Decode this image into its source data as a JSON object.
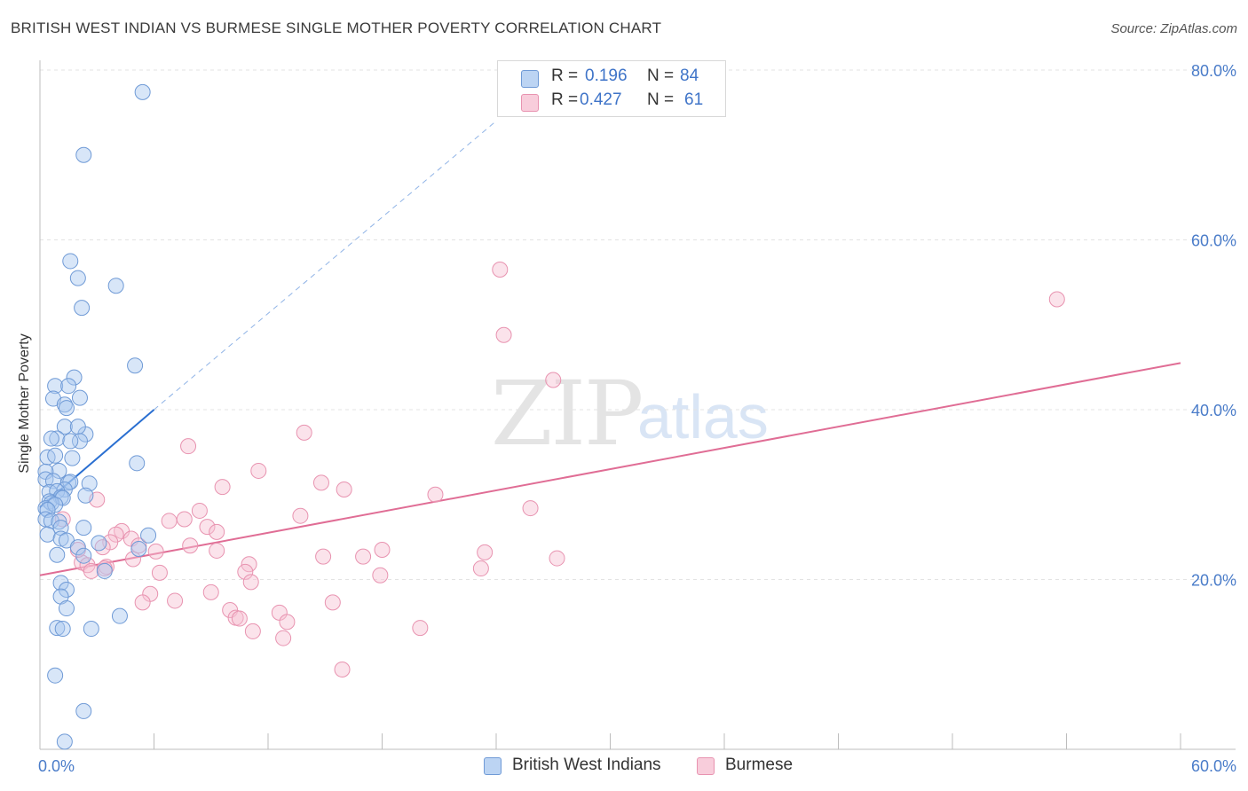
{
  "header": {
    "title": "BRITISH WEST INDIAN VS BURMESE SINGLE MOTHER POVERTY CORRELATION CHART",
    "source": "Source: ZipAtlas.com"
  },
  "watermark": {
    "zip": "ZIP",
    "atlas": "atlas"
  },
  "legend": {
    "rows": [
      {
        "r_label": "R =",
        "r_value": "0.196",
        "n_label": "N =",
        "n_value": "84"
      },
      {
        "r_label": "R =",
        "r_value": "0.427",
        "n_label": "N =",
        "n_value": "61"
      }
    ]
  },
  "bottom_legend": {
    "items": [
      {
        "label": "British West Indians"
      },
      {
        "label": "Burmese"
      }
    ]
  },
  "colors": {
    "blue_fill": "#a9c8ef",
    "blue_stroke": "#6f9ad6",
    "blue_line": "#2a6fd1",
    "pink_fill": "#f6c2d3",
    "pink_stroke": "#e893b0",
    "pink_line": "#e06d95",
    "tick_text": "#4a7cc9",
    "grid": "#e3e3e3"
  },
  "chart_data": {
    "type": "scatter",
    "title": "BRITISH WEST INDIAN VS BURMESE SINGLE MOTHER POVERTY CORRELATION CHART",
    "xlabel": "",
    "ylabel": "Single Mother Poverty",
    "xlim": [
      0,
      60
    ],
    "ylim": [
      0,
      80
    ],
    "x_tick_labels": [
      "0.0%",
      "60.0%"
    ],
    "y_tick_labels": [
      "20.0%",
      "40.0%",
      "60.0%",
      "80.0%"
    ],
    "y_ticks": [
      20,
      40,
      60,
      80
    ],
    "grid": true,
    "series": [
      {
        "name": "British West Indians",
        "color": "#a9c8ef",
        "R": 0.196,
        "N": 84,
        "trend": {
          "x": [
            0,
            6
          ],
          "y": [
            28.5,
            40.0
          ],
          "extended_to": [
            24,
            74
          ]
        },
        "points": [
          [
            5.4,
            77.4
          ],
          [
            2.3,
            70.0
          ],
          [
            1.6,
            57.5
          ],
          [
            2.0,
            55.5
          ],
          [
            4.0,
            54.6
          ],
          [
            2.2,
            52.0
          ],
          [
            5.0,
            45.2
          ],
          [
            1.8,
            43.8
          ],
          [
            0.8,
            42.8
          ],
          [
            1.5,
            42.8
          ],
          [
            0.7,
            41.3
          ],
          [
            2.1,
            41.4
          ],
          [
            1.3,
            40.6
          ],
          [
            1.4,
            40.2
          ],
          [
            2.4,
            37.1
          ],
          [
            1.3,
            38.0
          ],
          [
            2.0,
            38.0
          ],
          [
            0.9,
            36.6
          ],
          [
            2.1,
            36.3
          ],
          [
            0.6,
            36.6
          ],
          [
            1.6,
            36.3
          ],
          [
            0.4,
            34.4
          ],
          [
            0.8,
            34.6
          ],
          [
            1.7,
            34.3
          ],
          [
            1.0,
            32.8
          ],
          [
            0.3,
            32.7
          ],
          [
            5.1,
            33.7
          ],
          [
            0.3,
            31.8
          ],
          [
            0.7,
            31.6
          ],
          [
            1.5,
            31.4
          ],
          [
            2.6,
            31.3
          ],
          [
            1.6,
            31.5
          ],
          [
            1.3,
            30.6
          ],
          [
            0.5,
            30.3
          ],
          [
            0.9,
            30.4
          ],
          [
            1.1,
            29.7
          ],
          [
            2.4,
            29.9
          ],
          [
            0.5,
            29.2
          ],
          [
            1.2,
            29.6
          ],
          [
            0.6,
            29.0
          ],
          [
            0.3,
            28.4
          ],
          [
            0.8,
            28.8
          ],
          [
            0.4,
            28.2
          ],
          [
            0.3,
            27.1
          ],
          [
            0.6,
            26.9
          ],
          [
            1.0,
            26.8
          ],
          [
            1.1,
            26.1
          ],
          [
            2.3,
            26.1
          ],
          [
            0.4,
            25.3
          ],
          [
            1.1,
            24.8
          ],
          [
            1.4,
            24.6
          ],
          [
            3.1,
            24.3
          ],
          [
            5.7,
            25.2
          ],
          [
            2.0,
            23.8
          ],
          [
            5.2,
            23.6
          ],
          [
            0.9,
            22.9
          ],
          [
            2.3,
            22.8
          ],
          [
            3.4,
            21.0
          ],
          [
            1.1,
            19.6
          ],
          [
            1.4,
            18.8
          ],
          [
            1.1,
            18.0
          ],
          [
            1.4,
            16.6
          ],
          [
            4.2,
            15.7
          ],
          [
            0.9,
            14.3
          ],
          [
            1.2,
            14.2
          ],
          [
            2.7,
            14.2
          ],
          [
            0.8,
            8.7
          ],
          [
            2.3,
            4.5
          ],
          [
            1.3,
            0.9
          ]
        ]
      },
      {
        "name": "Burmese",
        "color": "#f6c2d3",
        "R": 0.427,
        "N": 61,
        "trend": {
          "x": [
            0,
            60
          ],
          "y": [
            20.5,
            45.5
          ]
        },
        "points": [
          [
            24.2,
            56.5
          ],
          [
            53.5,
            53.0
          ],
          [
            24.4,
            48.8
          ],
          [
            27.0,
            43.5
          ],
          [
            13.9,
            37.3
          ],
          [
            7.8,
            35.7
          ],
          [
            11.5,
            32.8
          ],
          [
            14.8,
            31.4
          ],
          [
            9.6,
            30.9
          ],
          [
            16.0,
            30.6
          ],
          [
            20.8,
            30.0
          ],
          [
            3.0,
            29.4
          ],
          [
            25.8,
            28.4
          ],
          [
            8.4,
            28.1
          ],
          [
            13.7,
            27.5
          ],
          [
            6.8,
            26.9
          ],
          [
            7.6,
            27.1
          ],
          [
            1.2,
            27.1
          ],
          [
            8.8,
            26.2
          ],
          [
            4.3,
            25.7
          ],
          [
            4.0,
            25.3
          ],
          [
            4.8,
            24.8
          ],
          [
            3.7,
            24.4
          ],
          [
            7.9,
            24.0
          ],
          [
            3.3,
            23.8
          ],
          [
            9.3,
            23.4
          ],
          [
            18.0,
            23.5
          ],
          [
            23.4,
            23.2
          ],
          [
            14.9,
            22.7
          ],
          [
            27.2,
            22.5
          ],
          [
            17.0,
            22.7
          ],
          [
            4.9,
            22.4
          ],
          [
            2.2,
            22.0
          ],
          [
            11.0,
            21.8
          ],
          [
            3.5,
            21.5
          ],
          [
            2.5,
            21.7
          ],
          [
            23.2,
            21.3
          ],
          [
            2.7,
            21.0
          ],
          [
            6.3,
            20.8
          ],
          [
            10.8,
            20.9
          ],
          [
            17.9,
            20.5
          ],
          [
            11.1,
            19.7
          ],
          [
            9.0,
            18.5
          ],
          [
            5.8,
            18.3
          ],
          [
            7.1,
            17.5
          ],
          [
            5.4,
            17.3
          ],
          [
            15.4,
            17.3
          ],
          [
            10.0,
            16.4
          ],
          [
            12.6,
            16.1
          ],
          [
            10.3,
            15.5
          ],
          [
            10.5,
            15.4
          ],
          [
            13.0,
            15.0
          ],
          [
            20.0,
            14.3
          ],
          [
            11.2,
            13.9
          ],
          [
            12.8,
            13.1
          ],
          [
            15.9,
            9.4
          ],
          [
            3.4,
            21.3
          ],
          [
            5.2,
            24.0
          ],
          [
            6.1,
            23.3
          ],
          [
            9.3,
            25.6
          ],
          [
            2.0,
            23.5
          ]
        ]
      }
    ]
  }
}
